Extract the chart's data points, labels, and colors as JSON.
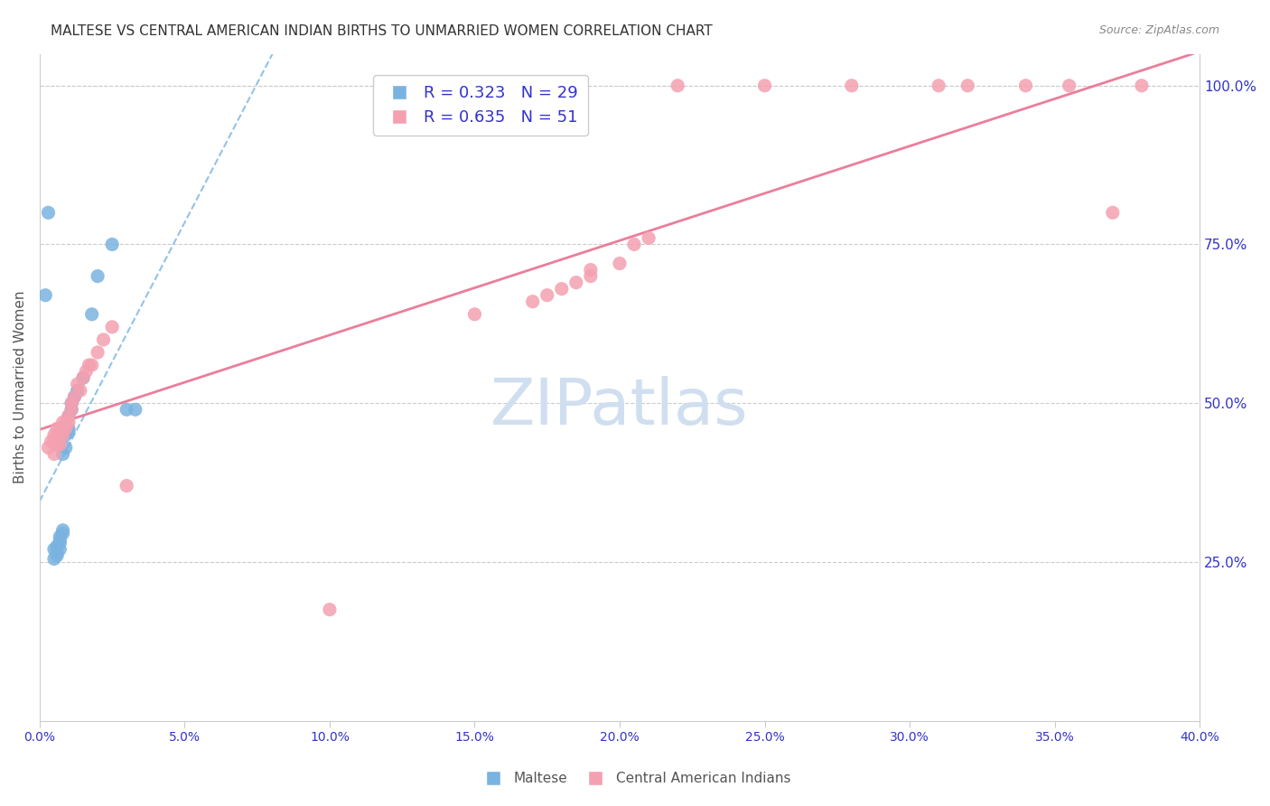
{
  "title": "MALTESE VS CENTRAL AMERICAN INDIAN BIRTHS TO UNMARRIED WOMEN CORRELATION CHART",
  "source": "Source: ZipAtlas.com",
  "xlabel_bottom": "",
  "ylabel_left": "Births to Unmarried Women",
  "legend_labels": [
    "Maltese",
    "Central American Indians"
  ],
  "R_blue": 0.323,
  "N_blue": 29,
  "R_pink": 0.635,
  "N_pink": 51,
  "xlim": [
    0.0,
    0.4
  ],
  "ylim": [
    0.0,
    1.05
  ],
  "xticks": [
    0.0,
    0.05,
    0.1,
    0.15,
    0.2,
    0.25,
    0.3,
    0.35,
    0.4
  ],
  "yticks_right": [
    0.25,
    0.5,
    0.75,
    1.0
  ],
  "ytick_right_labels": [
    "25.0%",
    "50.0%",
    "75.0%",
    "100.0%"
  ],
  "xtick_labels": [
    "0.0%",
    "5.0%",
    "10.0%",
    "15.0%",
    "20.0%",
    "25.0%",
    "30.0%",
    "35.0%",
    "40.0%"
  ],
  "blue_color": "#7ab3e0",
  "pink_color": "#f4a0b0",
  "blue_line_color": "#7ab3e0",
  "pink_line_color": "#e87090",
  "watermark": "ZIPatlas",
  "blue_scatter_x": [
    0.005,
    0.005,
    0.006,
    0.006,
    0.006,
    0.007,
    0.007,
    0.007,
    0.007,
    0.008,
    0.008,
    0.008,
    0.009,
    0.009,
    0.01,
    0.01,
    0.01,
    0.011,
    0.011,
    0.012,
    0.013,
    0.015,
    0.018,
    0.02,
    0.025,
    0.03,
    0.033,
    0.002,
    0.003
  ],
  "blue_scatter_y": [
    0.255,
    0.27,
    0.26,
    0.265,
    0.275,
    0.27,
    0.28,
    0.285,
    0.29,
    0.295,
    0.3,
    0.42,
    0.43,
    0.45,
    0.455,
    0.46,
    0.48,
    0.49,
    0.5,
    0.51,
    0.52,
    0.54,
    0.64,
    0.7,
    0.75,
    0.49,
    0.49,
    0.67,
    0.8
  ],
  "pink_scatter_x": [
    0.003,
    0.004,
    0.005,
    0.005,
    0.005,
    0.006,
    0.006,
    0.006,
    0.007,
    0.007,
    0.007,
    0.008,
    0.008,
    0.008,
    0.009,
    0.009,
    0.01,
    0.01,
    0.011,
    0.011,
    0.012,
    0.013,
    0.014,
    0.015,
    0.016,
    0.017,
    0.018,
    0.02,
    0.022,
    0.025,
    0.03,
    0.1,
    0.15,
    0.17,
    0.175,
    0.18,
    0.185,
    0.19,
    0.19,
    0.2,
    0.205,
    0.21,
    0.22,
    0.25,
    0.28,
    0.31,
    0.32,
    0.34,
    0.355,
    0.37,
    0.38
  ],
  "pink_scatter_y": [
    0.43,
    0.44,
    0.42,
    0.44,
    0.45,
    0.435,
    0.45,
    0.46,
    0.435,
    0.445,
    0.46,
    0.45,
    0.46,
    0.47,
    0.46,
    0.47,
    0.47,
    0.48,
    0.49,
    0.5,
    0.51,
    0.53,
    0.52,
    0.54,
    0.55,
    0.56,
    0.56,
    0.58,
    0.6,
    0.62,
    0.37,
    0.175,
    0.64,
    0.66,
    0.67,
    0.68,
    0.69,
    0.7,
    0.71,
    0.72,
    0.75,
    0.76,
    1.0,
    1.0,
    1.0,
    1.0,
    1.0,
    1.0,
    1.0,
    0.8,
    1.0
  ],
  "title_fontsize": 11,
  "axis_label_color": "#3333cc",
  "tick_label_color": "#3333cc",
  "grid_color": "#cccccc",
  "watermark_color": "#d0dff0",
  "watermark_fontsize": 52
}
